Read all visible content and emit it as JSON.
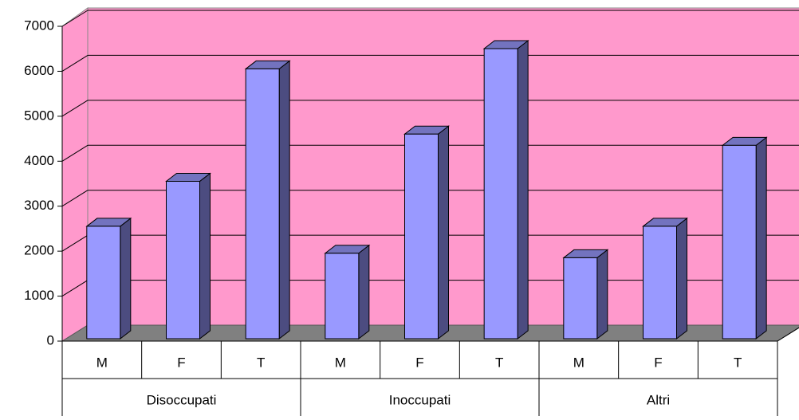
{
  "chart_data": {
    "type": "bar3d",
    "categories": [
      "M",
      "F",
      "T",
      "M",
      "F",
      "T",
      "M",
      "F",
      "T"
    ],
    "groups": [
      "Disoccupati",
      "Inoccupati",
      "Altri"
    ],
    "values": [
      2500,
      3500,
      6000,
      1900,
      4550,
      6450,
      1800,
      2500,
      4300
    ],
    "color": "#9999ff",
    "wall_color": "#ff99cc",
    "floor_color": "#808080",
    "ylim": [
      0,
      7000
    ],
    "yticks": [
      0,
      1000,
      2000,
      3000,
      4000,
      5000,
      6000,
      7000
    ],
    "grid": true
  }
}
